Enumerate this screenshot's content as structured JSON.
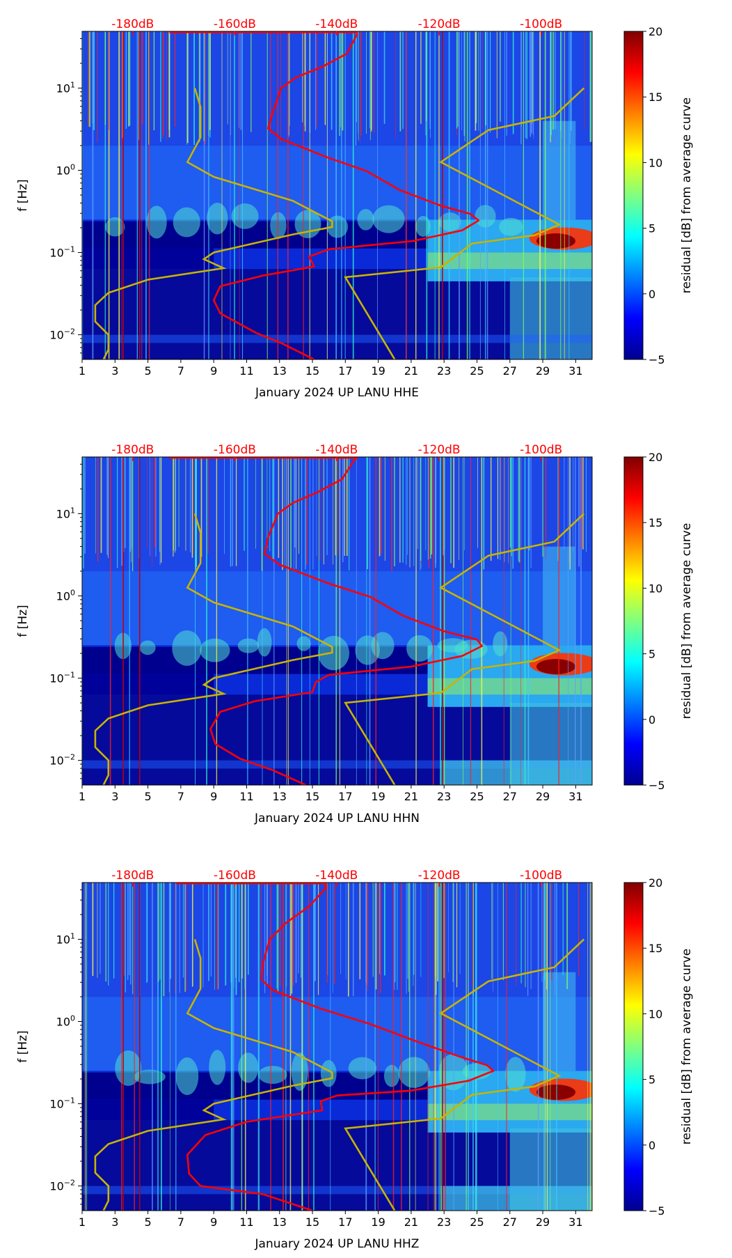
{
  "chart_data": [
    {
      "type": "heatmap",
      "title": "",
      "xlabel": "January 2024 UP LANU  HHE",
      "ylabel": "f [Hz]",
      "x_ticks": [
        "1",
        "3",
        "5",
        "7",
        "9",
        "11",
        "13",
        "15",
        "17",
        "19",
        "21",
        "23",
        "25",
        "27",
        "29",
        "31"
      ],
      "xlim": [
        1,
        32
      ],
      "y_scale": "log",
      "ylim": [
        0.005,
        49
      ],
      "y_ticks": [
        {
          "exp": "1",
          "value": 10
        },
        {
          "exp": "0",
          "value": 1
        },
        {
          "exp": "−1",
          "value": 0.1
        },
        {
          "exp": "−2",
          "value": 0.01
        }
      ],
      "top_axis": [
        {
          "label": "-180dB",
          "day": 4.08
        },
        {
          "label": "-160dB",
          "day": 10.28
        },
        {
          "label": "-140dB",
          "day": 16.47
        },
        {
          "label": "-120dB",
          "day": 22.7
        },
        {
          "label": "-100dB",
          "day": 28.9
        }
      ],
      "colorbar": {
        "label": "residual [dB] from average curve",
        "min": -5,
        "max": 20,
        "ticks": [
          "−5",
          "0",
          "5",
          "10",
          "15",
          "20"
        ]
      },
      "red_curve_day_logf": [
        [
          6.3,
          1.68
        ],
        [
          17.7,
          1.68
        ],
        [
          17.7,
          1.65
        ],
        [
          17.1,
          1.42
        ],
        [
          15.6,
          1.26
        ],
        [
          14.0,
          1.13
        ],
        [
          13.1,
          1.0
        ],
        [
          12.6,
          0.71
        ],
        [
          12.3,
          0.51
        ],
        [
          13.1,
          0.38
        ],
        [
          16.0,
          0.15
        ],
        [
          18.3,
          -0.01
        ],
        [
          20.3,
          -0.24
        ],
        [
          22.8,
          -0.43
        ],
        [
          24.6,
          -0.53
        ],
        [
          25.1,
          -0.61
        ],
        [
          24.1,
          -0.73
        ],
        [
          21.1,
          -0.86
        ],
        [
          16.0,
          -0.96
        ],
        [
          14.8,
          -1.05
        ],
        [
          15.1,
          -1.17
        ],
        [
          12.0,
          -1.28
        ],
        [
          9.4,
          -1.41
        ],
        [
          9.0,
          -1.58
        ],
        [
          9.4,
          -1.74
        ],
        [
          11.6,
          -1.98
        ],
        [
          13.1,
          -2.1
        ],
        [
          15.1,
          -2.3
        ]
      ]
    },
    {
      "type": "heatmap",
      "title": "",
      "xlabel": "January 2024 UP LANU  HHN",
      "ylabel": "f [Hz]",
      "x_ticks": [
        "1",
        "3",
        "5",
        "7",
        "9",
        "11",
        "13",
        "15",
        "17",
        "19",
        "21",
        "23",
        "25",
        "27",
        "29",
        "31"
      ],
      "xlim": [
        1,
        32
      ],
      "y_scale": "log",
      "ylim": [
        0.005,
        49
      ],
      "y_ticks": [
        {
          "exp": "1",
          "value": 10
        },
        {
          "exp": "0",
          "value": 1
        },
        {
          "exp": "−1",
          "value": 0.1
        },
        {
          "exp": "−2",
          "value": 0.01
        }
      ],
      "top_axis": [
        {
          "label": "-180dB",
          "day": 4.08
        },
        {
          "label": "-160dB",
          "day": 10.28
        },
        {
          "label": "-140dB",
          "day": 16.47
        },
        {
          "label": "-120dB",
          "day": 22.7
        },
        {
          "label": "-100dB",
          "day": 28.9
        }
      ],
      "colorbar": {
        "label": "residual [dB] from average curve",
        "min": -5,
        "max": 20,
        "ticks": [
          "−5",
          "0",
          "5",
          "10",
          "15",
          "20"
        ]
      },
      "red_curve_day_logf": [
        [
          6.3,
          1.68
        ],
        [
          17.7,
          1.68
        ],
        [
          17.5,
          1.64
        ],
        [
          16.8,
          1.42
        ],
        [
          15.3,
          1.26
        ],
        [
          13.8,
          1.13
        ],
        [
          12.9,
          1.0
        ],
        [
          12.3,
          0.71
        ],
        [
          12.1,
          0.51
        ],
        [
          13.0,
          0.38
        ],
        [
          16.0,
          0.15
        ],
        [
          18.5,
          -0.01
        ],
        [
          20.5,
          -0.24
        ],
        [
          23.0,
          -0.43
        ],
        [
          25.0,
          -0.53
        ],
        [
          25.3,
          -0.61
        ],
        [
          24.1,
          -0.73
        ],
        [
          21.0,
          -0.86
        ],
        [
          16.0,
          -0.96
        ],
        [
          15.2,
          -1.05
        ],
        [
          15.0,
          -1.17
        ],
        [
          11.5,
          -1.28
        ],
        [
          9.4,
          -1.41
        ],
        [
          8.8,
          -1.62
        ],
        [
          9.1,
          -1.8
        ],
        [
          10.6,
          -1.98
        ],
        [
          12.6,
          -2.12
        ],
        [
          14.6,
          -2.3
        ]
      ]
    },
    {
      "type": "heatmap",
      "title": "",
      "xlabel": "January 2024 UP LANU  HHZ",
      "ylabel": "f [Hz]",
      "x_ticks": [
        "1",
        "3",
        "5",
        "7",
        "9",
        "11",
        "13",
        "15",
        "17",
        "19",
        "21",
        "23",
        "25",
        "27",
        "29",
        "31"
      ],
      "xlim": [
        1,
        32
      ],
      "y_scale": "log",
      "ylim": [
        0.005,
        49
      ],
      "y_ticks": [
        {
          "exp": "1",
          "value": 10
        },
        {
          "exp": "0",
          "value": 1
        },
        {
          "exp": "−1",
          "value": 0.1
        },
        {
          "exp": "−2",
          "value": 0.01
        }
      ],
      "top_axis": [
        {
          "label": "-180dB",
          "day": 4.08
        },
        {
          "label": "-160dB",
          "day": 10.28
        },
        {
          "label": "-140dB",
          "day": 16.47
        },
        {
          "label": "-120dB",
          "day": 22.7
        },
        {
          "label": "-100dB",
          "day": 28.9
        }
      ],
      "colorbar": {
        "label": "residual [dB] from average curve",
        "min": -5,
        "max": 20,
        "ticks": [
          "−5",
          "0",
          "5",
          "10",
          "15",
          "20"
        ]
      },
      "red_curve_day_logf": [
        [
          6.7,
          1.68
        ],
        [
          15.8,
          1.68
        ],
        [
          15.8,
          1.62
        ],
        [
          14.8,
          1.4
        ],
        [
          13.4,
          1.2
        ],
        [
          12.4,
          1.0
        ],
        [
          12.0,
          0.71
        ],
        [
          11.9,
          0.51
        ],
        [
          12.6,
          0.38
        ],
        [
          15.6,
          0.15
        ],
        [
          18.5,
          -0.03
        ],
        [
          21.3,
          -0.24
        ],
        [
          24.0,
          -0.43
        ],
        [
          25.6,
          -0.53
        ],
        [
          26.0,
          -0.6
        ],
        [
          24.5,
          -0.72
        ],
        [
          21.0,
          -0.84
        ],
        [
          16.5,
          -0.9
        ],
        [
          15.5,
          -0.97
        ],
        [
          15.6,
          -1.08
        ],
        [
          11.0,
          -1.22
        ],
        [
          8.5,
          -1.38
        ],
        [
          7.4,
          -1.62
        ],
        [
          7.5,
          -1.85
        ],
        [
          8.2,
          -2.0
        ],
        [
          12.0,
          -2.1
        ],
        [
          15.0,
          -2.3
        ]
      ]
    }
  ],
  "yellow_curves_day_logf": [
    [
      [
        7.85,
        1.0
      ],
      [
        8.2,
        0.77
      ],
      [
        8.2,
        0.4
      ],
      [
        7.4,
        0.1
      ],
      [
        9.0,
        -0.08
      ],
      [
        13.8,
        -0.37
      ],
      [
        16.2,
        -0.62
      ],
      [
        16.2,
        -0.69
      ],
      [
        13.8,
        -0.78
      ],
      [
        9.0,
        -1.0
      ],
      [
        8.4,
        -1.08
      ],
      [
        9.6,
        -1.19
      ],
      [
        5.0,
        -1.33
      ],
      [
        2.6,
        -1.49
      ],
      [
        1.8,
        -1.64
      ],
      [
        1.8,
        -1.84
      ],
      [
        2.6,
        -2.0
      ],
      [
        2.6,
        -2.18
      ],
      [
        2.3,
        -2.3
      ]
    ],
    [
      [
        31.5,
        1.0
      ],
      [
        29.7,
        0.66
      ],
      [
        25.7,
        0.49
      ],
      [
        22.8,
        0.1
      ],
      [
        30.0,
        -0.66
      ],
      [
        28.5,
        -0.79
      ],
      [
        24.7,
        -0.89
      ],
      [
        22.8,
        -1.18
      ],
      [
        17.0,
        -1.3
      ],
      [
        20.0,
        -2.3
      ]
    ]
  ],
  "colors": {
    "red_curve": "#ff0000",
    "yellow_curve": "#c8b400",
    "top_axis_text": "#ff0000"
  }
}
